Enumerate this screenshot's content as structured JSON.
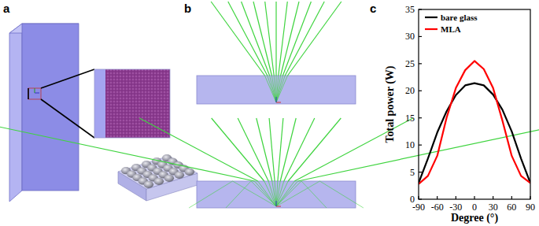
{
  "panel_labels": [
    "a",
    "b",
    "c"
  ],
  "chart_data": {
    "type": "line",
    "xlabel": "Degree (°)",
    "ylabel": "Total power (W)",
    "x": [
      -90,
      -75,
      -60,
      -45,
      -30,
      -15,
      0,
      15,
      30,
      45,
      60,
      75,
      90
    ],
    "series": [
      {
        "name": "bare glass",
        "color": "#000000",
        "values": [
          3,
          7.5,
          12.3,
          16.2,
          19.2,
          21,
          21.4,
          21,
          19.3,
          16.5,
          12.5,
          7.5,
          3
        ]
      },
      {
        "name": "MLA",
        "color": "#ff0000",
        "values": [
          2.8,
          4.3,
          8,
          15,
          20.5,
          23.8,
          25.5,
          24,
          20.5,
          14.5,
          8,
          4.3,
          3
        ]
      }
    ],
    "xlim": [
      -90,
      90
    ],
    "ylim": [
      0,
      35
    ],
    "xticks": [
      -90,
      -60,
      -30,
      0,
      30,
      60,
      90
    ],
    "yticks": [
      0,
      5,
      10,
      15,
      20,
      25,
      30,
      35
    ],
    "legend": "upper left"
  }
}
